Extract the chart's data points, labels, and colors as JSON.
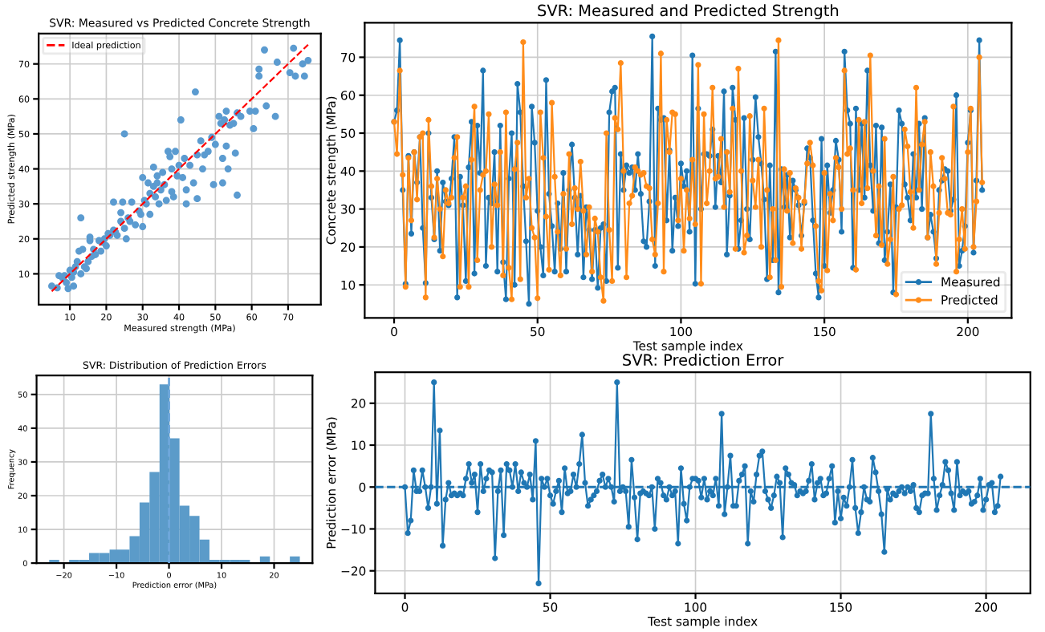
{
  "chart_data": [
    {
      "type": "scatter",
      "title": "SVR: Measured vs Predicted Concrete Strength",
      "xlabel": "Measured strength (MPa)",
      "ylabel": "Predicted strength (MPa)",
      "xlim": [
        1.4,
        79
      ],
      "ylim": [
        1.2,
        78.7
      ],
      "xticks": [
        10,
        20,
        30,
        40,
        50,
        60,
        70
      ],
      "yticks": [
        10,
        20,
        30,
        40,
        50,
        60,
        70
      ],
      "grid": true,
      "legend": "top left",
      "series": [
        {
          "type": "scatter",
          "color": "#5b9bd0",
          "marker": "circle",
          "x": [
            5,
            6.5,
            7,
            8,
            8.5,
            9,
            9.5,
            10,
            10.5,
            11,
            11,
            11.5,
            12,
            12.5,
            13,
            13,
            13.5,
            14,
            14.5,
            15,
            15.5,
            15.5,
            16,
            16.5,
            17,
            18,
            18.5,
            19,
            19.5,
            20,
            20.5,
            21,
            22,
            22,
            22.5,
            23,
            24,
            24,
            24.5,
            25,
            25,
            25.5,
            26,
            26.5,
            27,
            28,
            29,
            29.5,
            30,
            30,
            30.5,
            31,
            31.5,
            32,
            32,
            33,
            33,
            33.5,
            34,
            34,
            34.5,
            35,
            35.5,
            36,
            36.5,
            37,
            37.5,
            38,
            38,
            38.5,
            39,
            39.5,
            40,
            40.5,
            41,
            41.5,
            42,
            42,
            43,
            44,
            44.5,
            45,
            45,
            46,
            46.5,
            47,
            48,
            49,
            49.5,
            50,
            51,
            51.5,
            52,
            52,
            52.5,
            53,
            53,
            53.5,
            54,
            55,
            55.5,
            56,
            56,
            57,
            59.5,
            60.5,
            61,
            62,
            62,
            63.5,
            64,
            66.5,
            67,
            70.5,
            71.5,
            72,
            74,
            74.5,
            75.5
          ],
          "values": [
            6.5,
            6,
            9.5,
            8.8,
            9.5,
            7.5,
            5.8,
            11,
            9,
            6.5,
            10.5,
            12,
            13.5,
            16.5,
            10,
            26,
            17,
            12,
            11.5,
            13.5,
            19.5,
            20.5,
            15,
            17,
            15.5,
            19.5,
            16.5,
            19,
            20,
            18,
            21.5,
            21,
            22.5,
            30.5,
            22,
            21,
            27.5,
            25,
            30.5,
            23,
            50,
            20,
            26,
            25,
            30.5,
            24,
            28,
            27,
            23.5,
            37.5,
            31,
            30,
            36,
            33,
            27,
            35,
            40.5,
            32,
            38,
            36,
            30,
            34,
            39,
            35.5,
            31,
            45,
            43.5,
            33.5,
            40,
            32,
            45,
            38,
            41,
            54,
            37.5,
            43,
            34,
            30,
            41,
            36,
            62,
            31.5,
            44,
            48,
            40,
            44,
            45,
            49,
            35.5,
            47,
            55,
            53,
            43,
            36,
            54,
            56.5,
            46.5,
            40,
            52.5,
            53,
            44.5,
            32.5,
            56,
            55,
            56.5,
            51.5,
            56.5,
            68.5,
            66.5,
            74,
            58,
            55,
            70.5,
            67.5,
            74.5,
            66.5,
            70,
            66.5,
            71
          ]
        },
        {
          "type": "line",
          "name": "Ideal prediction",
          "color": "#ff0000",
          "line_style": "dashed",
          "marker": "none",
          "x": [
            5,
            75.5
          ],
          "values": [
            5,
            75.5
          ]
        }
      ]
    },
    {
      "type": "line",
      "title": "SVR: Measured and Predicted Strength",
      "xlabel": "Test sample index",
      "ylabel": "Concrete strength (MPa)",
      "xlim": [
        -10.25,
        215.25
      ],
      "ylim": [
        1.3,
        79.1
      ],
      "xticks": [
        0,
        50,
        100,
        150,
        200
      ],
      "yticks": [
        10,
        20,
        30,
        40,
        50,
        60,
        70
      ],
      "grid": true,
      "legend": "bottom right",
      "x": [
        0,
        1,
        2,
        3,
        4,
        5,
        6,
        7,
        8,
        9,
        10,
        11,
        12,
        13,
        14,
        15,
        16,
        17,
        18,
        19,
        20,
        21,
        22,
        23,
        24,
        25,
        26,
        27,
        28,
        29,
        30,
        31,
        32,
        33,
        34,
        35,
        36,
        37,
        38,
        39,
        40,
        41,
        42,
        43,
        44,
        45,
        46,
        47,
        48,
        49,
        50,
        51,
        52,
        53,
        54,
        55,
        56,
        57,
        58,
        59,
        60,
        61,
        62,
        63,
        64,
        65,
        66,
        67,
        68,
        69,
        70,
        71,
        72,
        73,
        74,
        75,
        76,
        77,
        78,
        79,
        80,
        81,
        82,
        83,
        84,
        85,
        86,
        87,
        88,
        89,
        90,
        91,
        92,
        93,
        94,
        95,
        96,
        97,
        98,
        99,
        100,
        101,
        102,
        103,
        104,
        105,
        106,
        107,
        108,
        109,
        110,
        111,
        112,
        113,
        114,
        115,
        116,
        117,
        118,
        119,
        120,
        121,
        122,
        123,
        124,
        125,
        126,
        127,
        128,
        129,
        130,
        131,
        132,
        133,
        134,
        135,
        136,
        137,
        138,
        139,
        140,
        141,
        142,
        143,
        144,
        145,
        146,
        147,
        148,
        149,
        150,
        151,
        152,
        153,
        154,
        155,
        156,
        157,
        158,
        159,
        160,
        161,
        162,
        163,
        164,
        165,
        166,
        167,
        168,
        169,
        170,
        171,
        172,
        173,
        174,
        175,
        176,
        177,
        178,
        179,
        180,
        181,
        182,
        183,
        184,
        185,
        186,
        187,
        188,
        189,
        190,
        191,
        192,
        193,
        194,
        195,
        196,
        197,
        198,
        199,
        200,
        201,
        202,
        203,
        204,
        205
      ],
      "series": [
        {
          "name": "Measured",
          "color": "#1f77b4",
          "marker": "circle",
          "line_style": "solid",
          "values": [
            53,
            56,
            74.5,
            35,
            10.3,
            44,
            23.5,
            45,
            37,
            49,
            25,
            10.5,
            50,
            33,
            22,
            40,
            19,
            37,
            32,
            31,
            38,
            49,
            6.7,
            38.5,
            31,
            11,
            41,
            53,
            13,
            52,
            39.5,
            66.5,
            15,
            33,
            31.5,
            45,
            13.5,
            52,
            16,
            6.2,
            38,
            50,
            10,
            63,
            55.5,
            36,
            21.5,
            5,
            57,
            47.5,
            29.5,
            20,
            12.5,
            64,
            34,
            25.5,
            13.5,
            31.5,
            19.5,
            39.5,
            13.5,
            35,
            47,
            33,
            18,
            33.5,
            12,
            30.5,
            24.5,
            11.5,
            24.5,
            9.2,
            25,
            26,
            11,
            55.5,
            61,
            62,
            14.5,
            44.5,
            35,
            41.5,
            39.5,
            41,
            35,
            44.5,
            34,
            21.5,
            20,
            32,
            75.5,
            15,
            56.5,
            53.5,
            54,
            27,
            45.5,
            19,
            33,
            25.5,
            42,
            36,
            40,
            24,
            70.5,
            10.3,
            56.5,
            30,
            44.5,
            44.5,
            44,
            51,
            30.5,
            44,
            37,
            61,
            18,
            33.5,
            62,
            53.5,
            19.5,
            27,
            54,
            30,
            22,
            43,
            59.5,
            49,
            42,
            32.5,
            11.5,
            41.5,
            16.5,
            71.5,
            8,
            40.5,
            30.5,
            39,
            22.5,
            37.5,
            35,
            31,
            23,
            31.5,
            46,
            43.5,
            27,
            13,
            6.7,
            48.5,
            15,
            41.5,
            29,
            35,
            48,
            43,
            24,
            71.5,
            56,
            52.5,
            14.5,
            56.5,
            35,
            52.5,
            33,
            66.5,
            41.5,
            29.5,
            52,
            21,
            51.5,
            16.5,
            24,
            36.5,
            8,
            30.5,
            56,
            52.5,
            36.5,
            33,
            27,
            44.5,
            33,
            52.5,
            30,
            54,
            22.5,
            28.5,
            24,
            17,
            35,
            37.5,
            40.5,
            40,
            29.5,
            32.5,
            60,
            15,
            19,
            25.5,
            47.5,
            56,
            18.5,
            37.5,
            74.5,
            35
          ]
        },
        {
          "name": "Predicted",
          "color": "#ff8c1a",
          "marker": "circle",
          "line_style": "solid",
          "values": [
            53,
            44.5,
            66.5,
            39,
            9.5,
            43.5,
            27,
            45,
            32.5,
            49,
            50,
            6.7,
            53.5,
            36,
            22.5,
            38,
            30,
            17.5,
            35,
            31.5,
            33,
            43.5,
            49,
            9.5,
            33,
            36,
            9.5,
            43,
            57,
            16.5,
            35,
            39,
            40,
            55,
            20,
            36.5,
            31,
            45,
            12.5,
            55.5,
            14.5,
            6.2,
            40.5,
            47.5,
            11.5,
            74,
            33,
            38,
            25,
            22.5,
            6.5,
            55.5,
            43.5,
            28,
            14,
            58,
            38.5,
            24,
            12.5,
            34,
            19.5,
            44.5,
            26,
            35.5,
            30,
            42.5,
            29.5,
            18,
            30.5,
            13.5,
            27.5,
            24,
            12,
            5.8,
            50,
            24.5,
            11,
            54,
            51,
            68.5,
            40,
            12,
            31.5,
            33.5,
            41,
            40,
            39,
            39.5,
            36,
            35.5,
            22,
            18,
            31.5,
            71,
            13.5,
            53.5,
            45,
            55.5,
            55,
            27,
            38,
            19,
            35,
            27.5,
            43,
            26,
            68,
            10.3,
            55,
            31.5,
            40,
            62,
            38,
            38.5,
            48.5,
            30.5,
            45,
            34.5,
            56.5,
            19.5,
            67,
            40,
            18.5,
            23,
            54.5,
            37.5,
            30.5,
            43,
            20,
            56.5,
            35,
            12,
            30,
            16.5,
            74.5,
            9.5,
            40.5,
            29.5,
            39.5,
            21,
            35.5,
            33,
            19.5,
            32,
            42,
            47.5,
            41.5,
            25.5,
            11,
            8.5,
            39.5,
            13.8,
            34,
            27,
            43.5,
            41,
            30,
            66.5,
            44.5,
            46,
            35,
            14,
            53.5,
            31.5,
            53,
            35.5,
            70.5,
            40,
            23,
            36,
            20.5,
            48.5,
            15.5,
            22,
            38.5,
            7.5,
            30,
            31,
            51,
            46.5,
            34.5,
            25,
            62,
            35,
            47,
            53,
            22.5,
            45,
            36,
            15.5,
            29,
            43.5,
            38,
            29,
            28.5,
            57,
            13.5,
            22,
            30,
            19.5,
            45,
            56.5,
            20,
            32,
            70,
            37
          ]
        }
      ]
    },
    {
      "type": "histogram",
      "title": "SVR: Distribution of Prediction Errors",
      "xlabel": "Prediction error (MPa)",
      "ylabel": "Frequency",
      "xlim": [
        -25.2,
        27.3
      ],
      "ylim": [
        0,
        55.65
      ],
      "xticks": [
        -20,
        -10,
        0,
        10,
        20
      ],
      "yticks": [
        0,
        10,
        20,
        30,
        40,
        50
      ],
      "grid": true,
      "color": "#5b9bc9",
      "bins": [
        -22.8,
        -20.9,
        -19.0,
        -17.1,
        -15.2,
        -13.3,
        -11.3,
        -9.4,
        -7.5,
        -5.6,
        -3.7,
        -1.8,
        0.1,
        2.0,
        3.9,
        5.8,
        7.7,
        9.6,
        11.6,
        13.5,
        15.4,
        17.3,
        19.2,
        23.0,
        24.9
      ],
      "values": [
        1,
        0,
        1,
        1,
        3,
        3,
        4,
        4,
        8,
        18,
        27,
        53,
        37,
        17,
        14,
        7,
        1,
        1,
        1,
        1,
        0,
        2,
        0,
        2
      ],
      "ref_lines": [
        {
          "axis": "x",
          "value": 0,
          "color": "#6fa8dc",
          "line_style": "dashed"
        }
      ]
    },
    {
      "type": "line",
      "title": "SVR: Prediction Error",
      "xlabel": "Test sample index",
      "ylabel": "Prediction error (MPa)",
      "xlim": [
        -10.25,
        215.25
      ],
      "ylim": [
        -25.4,
        27.4
      ],
      "xticks": [
        0,
        50,
        100,
        150,
        200
      ],
      "yticks": [
        -20,
        -10,
        0,
        10,
        20
      ],
      "grid": true,
      "x": [
        0,
        1,
        2,
        3,
        4,
        5,
        6,
        7,
        8,
        9,
        10,
        11,
        12,
        13,
        14,
        15,
        16,
        17,
        18,
        19,
        20,
        21,
        22,
        23,
        24,
        25,
        26,
        27,
        28,
        29,
        30,
        31,
        32,
        33,
        34,
        35,
        36,
        37,
        38,
        39,
        40,
        41,
        42,
        43,
        44,
        45,
        46,
        47,
        48,
        49,
        50,
        51,
        52,
        53,
        54,
        55,
        56,
        57,
        58,
        59,
        60,
        61,
        62,
        63,
        64,
        65,
        66,
        67,
        68,
        69,
        70,
        71,
        72,
        73,
        74,
        75,
        76,
        77,
        78,
        79,
        80,
        81,
        82,
        83,
        84,
        85,
        86,
        87,
        88,
        89,
        90,
        91,
        92,
        93,
        94,
        95,
        96,
        97,
        98,
        99,
        100,
        101,
        102,
        103,
        104,
        105,
        106,
        107,
        108,
        109,
        110,
        111,
        112,
        113,
        114,
        115,
        116,
        117,
        118,
        119,
        120,
        121,
        122,
        123,
        124,
        125,
        126,
        127,
        128,
        129,
        130,
        131,
        132,
        133,
        134,
        135,
        136,
        137,
        138,
        139,
        140,
        141,
        142,
        143,
        144,
        145,
        146,
        147,
        148,
        149,
        150,
        151,
        152,
        153,
        154,
        155,
        156,
        157,
        158,
        159,
        160,
        161,
        162,
        163,
        164,
        165,
        166,
        167,
        168,
        169,
        170,
        171,
        172,
        173,
        174,
        175,
        176,
        177,
        178,
        179,
        180,
        181,
        182,
        183,
        184,
        185,
        186,
        187,
        188,
        189,
        190,
        191,
        192,
        193,
        194,
        195,
        196,
        197,
        198,
        199,
        200,
        201,
        202,
        203,
        204,
        205
      ],
      "series": [
        {
          "color": "#1f77b4",
          "marker": "circle",
          "line_style": "solid",
          "values": [
            0,
            -11,
            -8,
            4,
            -1,
            -1,
            4,
            0,
            -5,
            0,
            25,
            -4,
            13.5,
            -14,
            -3,
            1,
            -2,
            -1.5,
            -2,
            -1.5,
            -2,
            2,
            5.5,
            1,
            3,
            -6,
            5.5,
            -1,
            2,
            4,
            3.5,
            -17,
            -1,
            4,
            -11.5,
            5.5,
            4,
            0,
            5.5,
            -1,
            3.5,
            1,
            0,
            3,
            -3,
            11,
            -23,
            2,
            0,
            2,
            -2,
            -4,
            -1,
            1.5,
            -6,
            4.5,
            -1.5,
            -1,
            3,
            0,
            5.5,
            12.5,
            1,
            -4.5,
            -3,
            -2,
            -1,
            1.5,
            3,
            0,
            2,
            0,
            -3.5,
            25,
            -1,
            0,
            -1,
            -9.5,
            6.5,
            -2.5,
            -12.5,
            -1.5,
            -1,
            -1.5,
            -2,
            0,
            -10,
            2,
            1,
            -2,
            -3,
            0,
            -2,
            -1,
            -13.5,
            4.5,
            -4,
            -8,
            0,
            2,
            2,
            1.5,
            -2.5,
            2,
            -3,
            -1,
            -2,
            2,
            -4.5,
            17.5,
            -6.5,
            0,
            7.5,
            -4.5,
            -4.5,
            1.5,
            3,
            5,
            -13.5,
            -1,
            -3.5,
            3,
            7.5,
            8.5,
            -1,
            -3,
            -5,
            -2,
            2.5,
            1,
            -12,
            4.5,
            3,
            1,
            0.5,
            -2,
            -1,
            -1.5,
            -1,
            1.5,
            5.5,
            -3,
            1,
            2,
            -2,
            -1.5,
            2,
            5,
            -8.5,
            -1,
            -7.5,
            -2.5,
            -4.5,
            0,
            6.5,
            -5,
            -11,
            -6,
            0,
            -3,
            -3.5,
            7,
            3.5,
            -1,
            -6.5,
            -15.5,
            -0.5,
            -3,
            -1.5,
            -2,
            -1,
            0,
            -1.5,
            0,
            -1,
            0.5,
            -5,
            -6,
            -2,
            -1.5,
            -1.5,
            17.5,
            2,
            -5.5,
            -2,
            0.5,
            6,
            4,
            -1.5,
            -5.5,
            6,
            -2,
            -1,
            -1.5,
            -1,
            -4,
            -3.5,
            -2,
            2,
            -5.5,
            -3,
            0.5,
            1,
            -6,
            -4.5,
            2.5
          ]
        }
      ],
      "ref_lines": [
        {
          "axis": "y",
          "value": 0,
          "color": "#1f77b4",
          "line_style": "dashed"
        }
      ]
    }
  ]
}
